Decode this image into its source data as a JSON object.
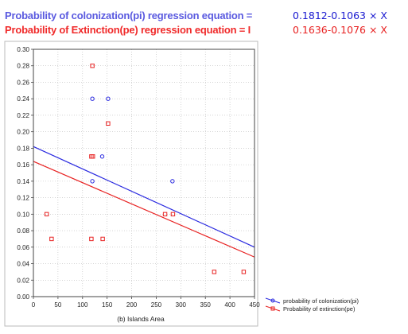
{
  "header": {
    "pi_label": "Probability of colonization(pi) regression equation =",
    "pi_equation": "0.1812-0.1063 × X",
    "pe_label": "Probability of Extinction(pe) regression equation = I",
    "pe_equation": "0.1636-0.1076 × X"
  },
  "colors": {
    "colonization": "#2a2ae0",
    "extinction": "#e82222",
    "plot_border": "#444444",
    "grid": "#bbbbbb"
  },
  "chart_data": {
    "type": "scatter",
    "xlabel": "(b) Islands Area",
    "ylabel": "",
    "xlim": [
      0,
      450
    ],
    "ylim": [
      0,
      0.3
    ],
    "x_ticks": [
      "0",
      "50",
      "100",
      "150",
      "200",
      "250",
      "300",
      "350",
      "400",
      "450"
    ],
    "y_ticks": [
      "0.00",
      "0.02",
      "0.04",
      "0.06",
      "0.08",
      "0.10",
      "0.12",
      "0.14",
      "0.16",
      "0.18",
      "0.20",
      "0.22",
      "0.24",
      "0.26",
      "0.28",
      "0.30"
    ],
    "grid": true,
    "legend_position": "bottom-right",
    "series": [
      {
        "name": "probability of colonization(pi)",
        "marker": "circle",
        "color": "#2a2ae0",
        "points": [
          {
            "x": 120,
            "y": 0.24
          },
          {
            "x": 152,
            "y": 0.24
          },
          {
            "x": 140,
            "y": 0.17
          },
          {
            "x": 120,
            "y": 0.14
          },
          {
            "x": 283,
            "y": 0.14
          }
        ],
        "fit_line": {
          "x": [
            0,
            450
          ],
          "y": [
            0.182,
            0.06
          ]
        }
      },
      {
        "name": "Probability of extinction(pe)",
        "marker": "square",
        "color": "#e82222",
        "points": [
          {
            "x": 120,
            "y": 0.28
          },
          {
            "x": 152,
            "y": 0.21
          },
          {
            "x": 118,
            "y": 0.17
          },
          {
            "x": 121,
            "y": 0.17
          },
          {
            "x": 27,
            "y": 0.1
          },
          {
            "x": 268,
            "y": 0.1
          },
          {
            "x": 284,
            "y": 0.1
          },
          {
            "x": 37,
            "y": 0.07
          },
          {
            "x": 118,
            "y": 0.07
          },
          {
            "x": 141,
            "y": 0.07
          },
          {
            "x": 368,
            "y": 0.03
          },
          {
            "x": 428,
            "y": 0.03
          }
        ],
        "fit_line": {
          "x": [
            0,
            450
          ],
          "y": [
            0.164,
            0.048
          ]
        }
      }
    ]
  }
}
